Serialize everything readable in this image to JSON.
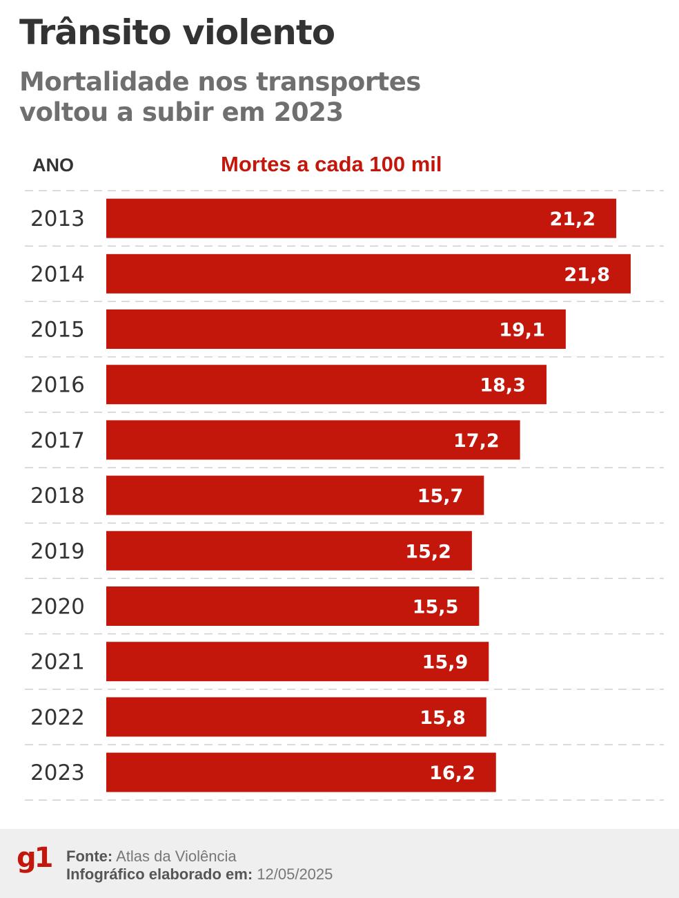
{
  "chart_data": {
    "type": "bar",
    "orientation": "horizontal",
    "title": "Trânsito violento",
    "subtitle": "Mortalidade nos transportes voltou a subir em 2023",
    "category_header": "ANO",
    "value_header": "Mortes a cada 100 mil",
    "categories": [
      "2013",
      "2014",
      "2015",
      "2016",
      "2017",
      "2018",
      "2019",
      "2020",
      "2021",
      "2022",
      "2023"
    ],
    "values": [
      21.2,
      21.8,
      19.1,
      18.3,
      17.2,
      15.7,
      15.2,
      15.5,
      15.9,
      15.8,
      16.2
    ],
    "value_labels": [
      "21,2",
      "21,8",
      "19,1",
      "18,3",
      "17,2",
      "15,7",
      "15,2",
      "15,5",
      "15,9",
      "15,8",
      "16,2"
    ],
    "bar_color": "#c4170c",
    "grid": true,
    "xlim": [
      0,
      21.8
    ]
  },
  "footer": {
    "logo": "g1",
    "source_label": "Fonte:",
    "source_value": "Atlas da Violência",
    "made_label": "Infográfico elaborado em:",
    "made_value": "12/05/2025"
  },
  "colors": {
    "accent": "#c4170c",
    "title": "#333333",
    "subtitle": "#6f6f6f",
    "footer_bg": "#efefef"
  }
}
